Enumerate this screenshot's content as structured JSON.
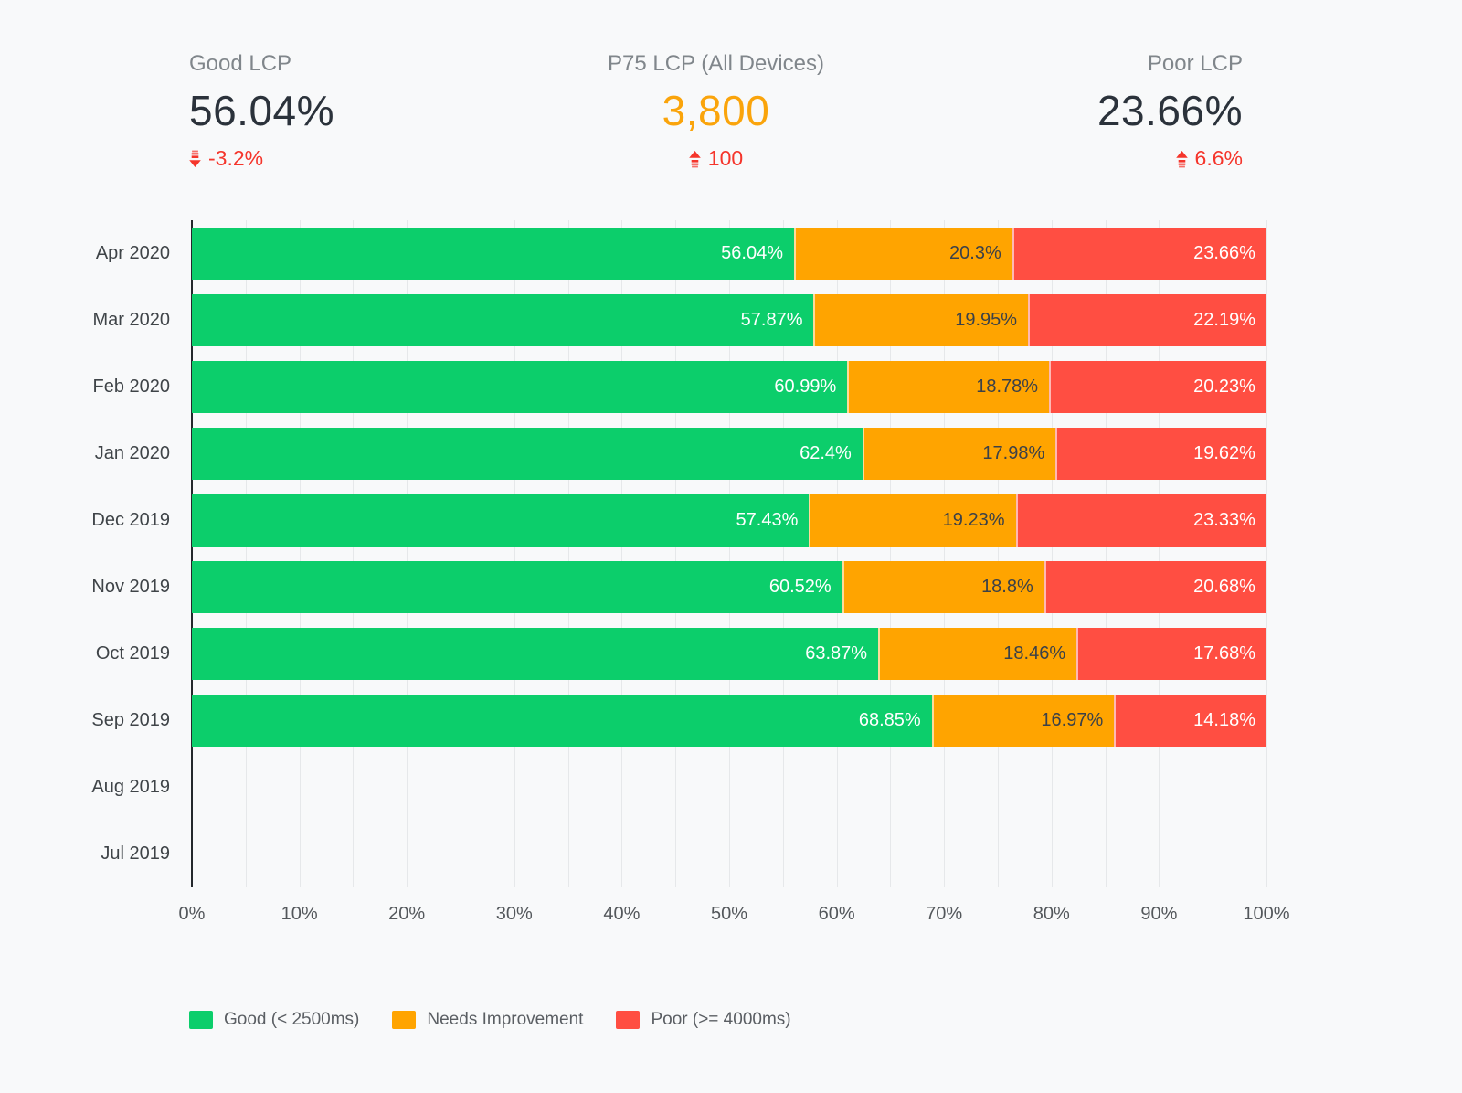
{
  "kpis": [
    {
      "label": "Good LCP",
      "value": "56.04%",
      "delta": "-3.2%",
      "direction": "down"
    },
    {
      "label": "P75 LCP (All Devices)",
      "value": "3,800",
      "delta": "100",
      "direction": "up"
    },
    {
      "label": "Poor LCP",
      "value": "23.66%",
      "delta": "6.6%",
      "direction": "up"
    }
  ],
  "colors": {
    "background": "#F8F9FA",
    "good": "#0CCE6B",
    "needs_improvement": "#FFA400",
    "poor": "#FF4E42",
    "delta": "#F5352B",
    "kpi_label": "#80868B",
    "kpi_value": "#2B323B",
    "kpi_accent": "#FAA40B",
    "axis_text": "#3F4448",
    "tick_text": "#53575B",
    "gridline": "#E6E8EA",
    "axis_line": "#24282C",
    "legend_text": "#5A5E63"
  },
  "chart_data": {
    "type": "bar",
    "orientation": "horizontal",
    "stacked": true,
    "categories": [
      "Apr 2020",
      "Mar 2020",
      "Feb 2020",
      "Jan 2020",
      "Dec 2019",
      "Nov 2019",
      "Oct 2019",
      "Sep 2019",
      "Aug 2019",
      "Jul 2019"
    ],
    "series": [
      {
        "key": "good",
        "name": "Good (< 2500ms)",
        "color": "#0CCE6B",
        "label_color": "#FFFFFF",
        "values": [
          56.04,
          57.87,
          60.99,
          62.4,
          57.43,
          60.52,
          63.87,
          68.85,
          null,
          null
        ]
      },
      {
        "key": "needs-improvement",
        "name": "Needs Improvement",
        "color": "#FFA400",
        "label_color": "#3B4148",
        "values": [
          20.3,
          19.95,
          18.78,
          17.98,
          19.23,
          18.8,
          18.46,
          16.97,
          null,
          null
        ]
      },
      {
        "key": "poor",
        "name": "Poor (>= 4000ms)",
        "color": "#FF4E42",
        "label_color": "#FFFFFF",
        "values": [
          23.66,
          22.19,
          20.23,
          19.62,
          23.33,
          20.68,
          17.68,
          14.18,
          null,
          null
        ]
      }
    ],
    "x_ticks": [
      "0%",
      "10%",
      "20%",
      "30%",
      "40%",
      "50%",
      "60%",
      "70%",
      "80%",
      "90%",
      "100%"
    ],
    "xlim": [
      0,
      100
    ],
    "gridline_step": 5,
    "grid": true,
    "legend_position": "bottom"
  }
}
